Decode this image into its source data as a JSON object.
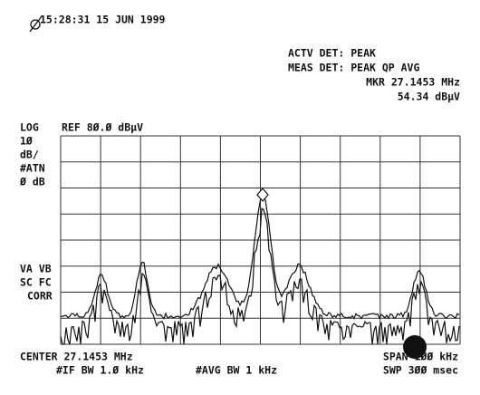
{
  "header": {
    "timestamp": "15:28:31  15 JUN 1999"
  },
  "status": {
    "actv_det": "ACTV DET: PEAK",
    "meas_det": "MEAS DET: PEAK QP AVG",
    "marker_freq": "MKR 27.1453 MHz",
    "marker_level": "54.34 dBµV"
  },
  "left_panel": {
    "scale": "LOG",
    "ref": "REF 8Ø.Ø dBµV",
    "div": "1Ø",
    "div_unit": "dB/",
    "atn": "#ATN",
    "atn_value": "Ø dB",
    "va_vb": "VA VB",
    "sc_fc": "SC FC",
    "corr": "CORR"
  },
  "footer": {
    "center": "CENTER 27.1453 MHz",
    "if_bw": "#IF BW 1.Ø kHz",
    "avg_bw": "#AVG BW 1 kHz",
    "span": "SPAN 1ØØ kHz",
    "sweep": "SWP 3ØØ msec"
  }
}
